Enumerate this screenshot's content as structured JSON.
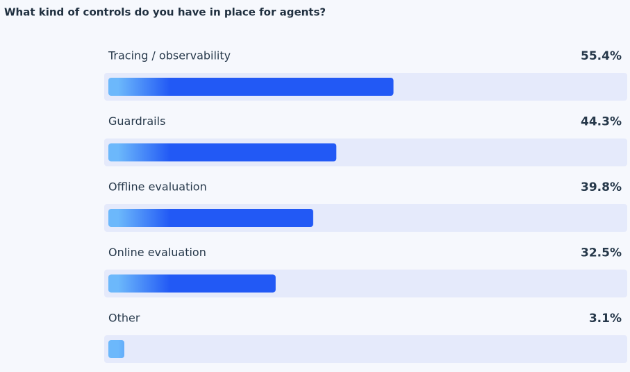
{
  "chart_data": {
    "type": "bar",
    "orientation": "horizontal",
    "title": "What kind of controls do you have in place for agents?",
    "categories": [
      "Tracing / observability",
      "Guardrails",
      "Offline evaluation",
      "Online evaluation",
      "Other"
    ],
    "values": [
      55.4,
      44.3,
      39.8,
      32.5,
      3.1
    ],
    "value_labels": [
      "55.4%",
      "44.3%",
      "39.8%",
      "32.5%",
      "3.1%"
    ],
    "xlim": [
      0,
      100
    ],
    "color": "#2259f5"
  }
}
